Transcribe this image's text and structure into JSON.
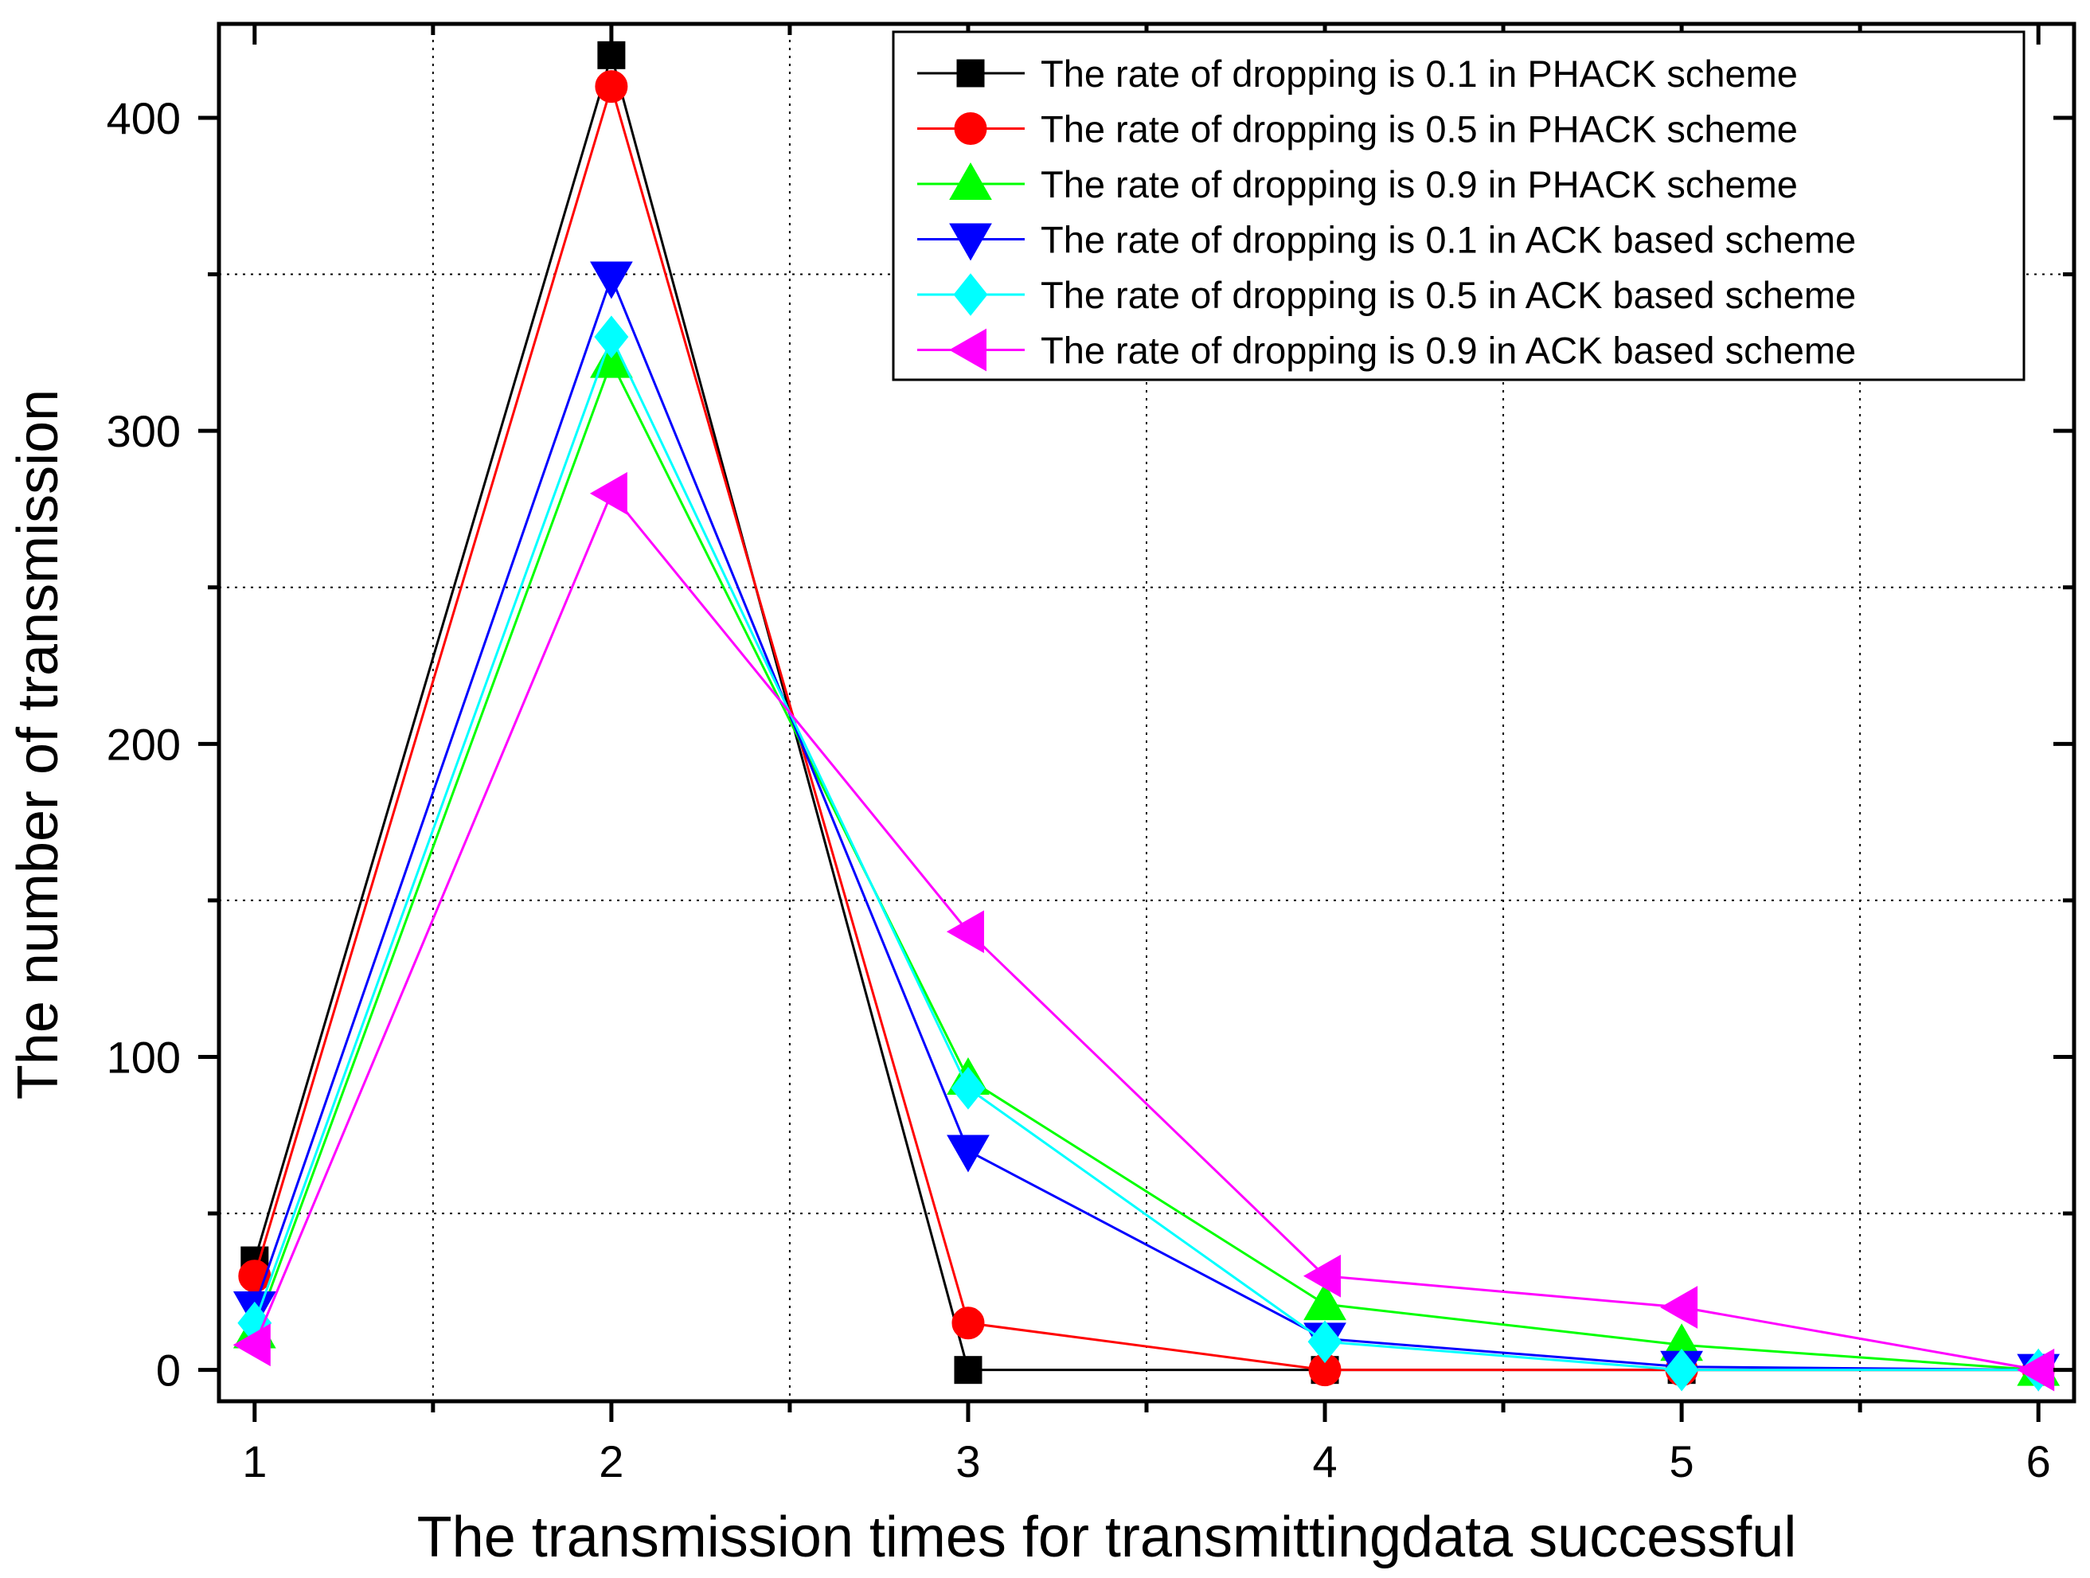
{
  "chart_data": {
    "type": "line",
    "title": "",
    "xlabel": "The transmission times  for transmittingdata successful",
    "ylabel": "The number of transmission",
    "x": [
      1,
      2,
      3,
      4,
      5,
      6
    ],
    "xlim": [
      0.9,
      6.1
    ],
    "ylim": [
      -10,
      430
    ],
    "xticks": [
      "1",
      "2",
      "3",
      "4",
      "5",
      "6"
    ],
    "yticks": [
      "0",
      "100",
      "200",
      "300",
      "400"
    ],
    "ytick_values": [
      0,
      100,
      200,
      300,
      400
    ],
    "grid": true,
    "legend_position": "top-right",
    "series": [
      {
        "name": "The rate of dropping is 0.1 in PHACK scheme",
        "color": "#000000",
        "marker": "square",
        "values": [
          35,
          420,
          0,
          0,
          0,
          0
        ]
      },
      {
        "name": "The rate of dropping is 0.5 in PHACK scheme",
        "color": "#ff0000",
        "marker": "circle",
        "values": [
          30,
          410,
          15,
          0,
          0,
          0
        ]
      },
      {
        "name": "The rate of dropping is 0.9 in PHACK scheme",
        "color": "#00ff00",
        "marker": "triangle-up",
        "values": [
          12,
          322,
          93,
          21,
          8,
          0
        ]
      },
      {
        "name": "The rate of dropping is 0.1 in ACK based scheme",
        "color": "#0000ff",
        "marker": "triangle-down",
        "values": [
          20,
          349,
          70,
          10,
          1,
          0
        ]
      },
      {
        "name": "The rate of dropping is 0.5 in ACK based scheme",
        "color": "#00ffff",
        "marker": "diamond",
        "values": [
          15,
          330,
          90,
          9,
          0,
          0
        ]
      },
      {
        "name": "The rate of dropping is 0.9 in ACK based scheme",
        "color": "#ff00ff",
        "marker": "triangle-left",
        "values": [
          8,
          280,
          140,
          30,
          20,
          0
        ]
      }
    ]
  }
}
